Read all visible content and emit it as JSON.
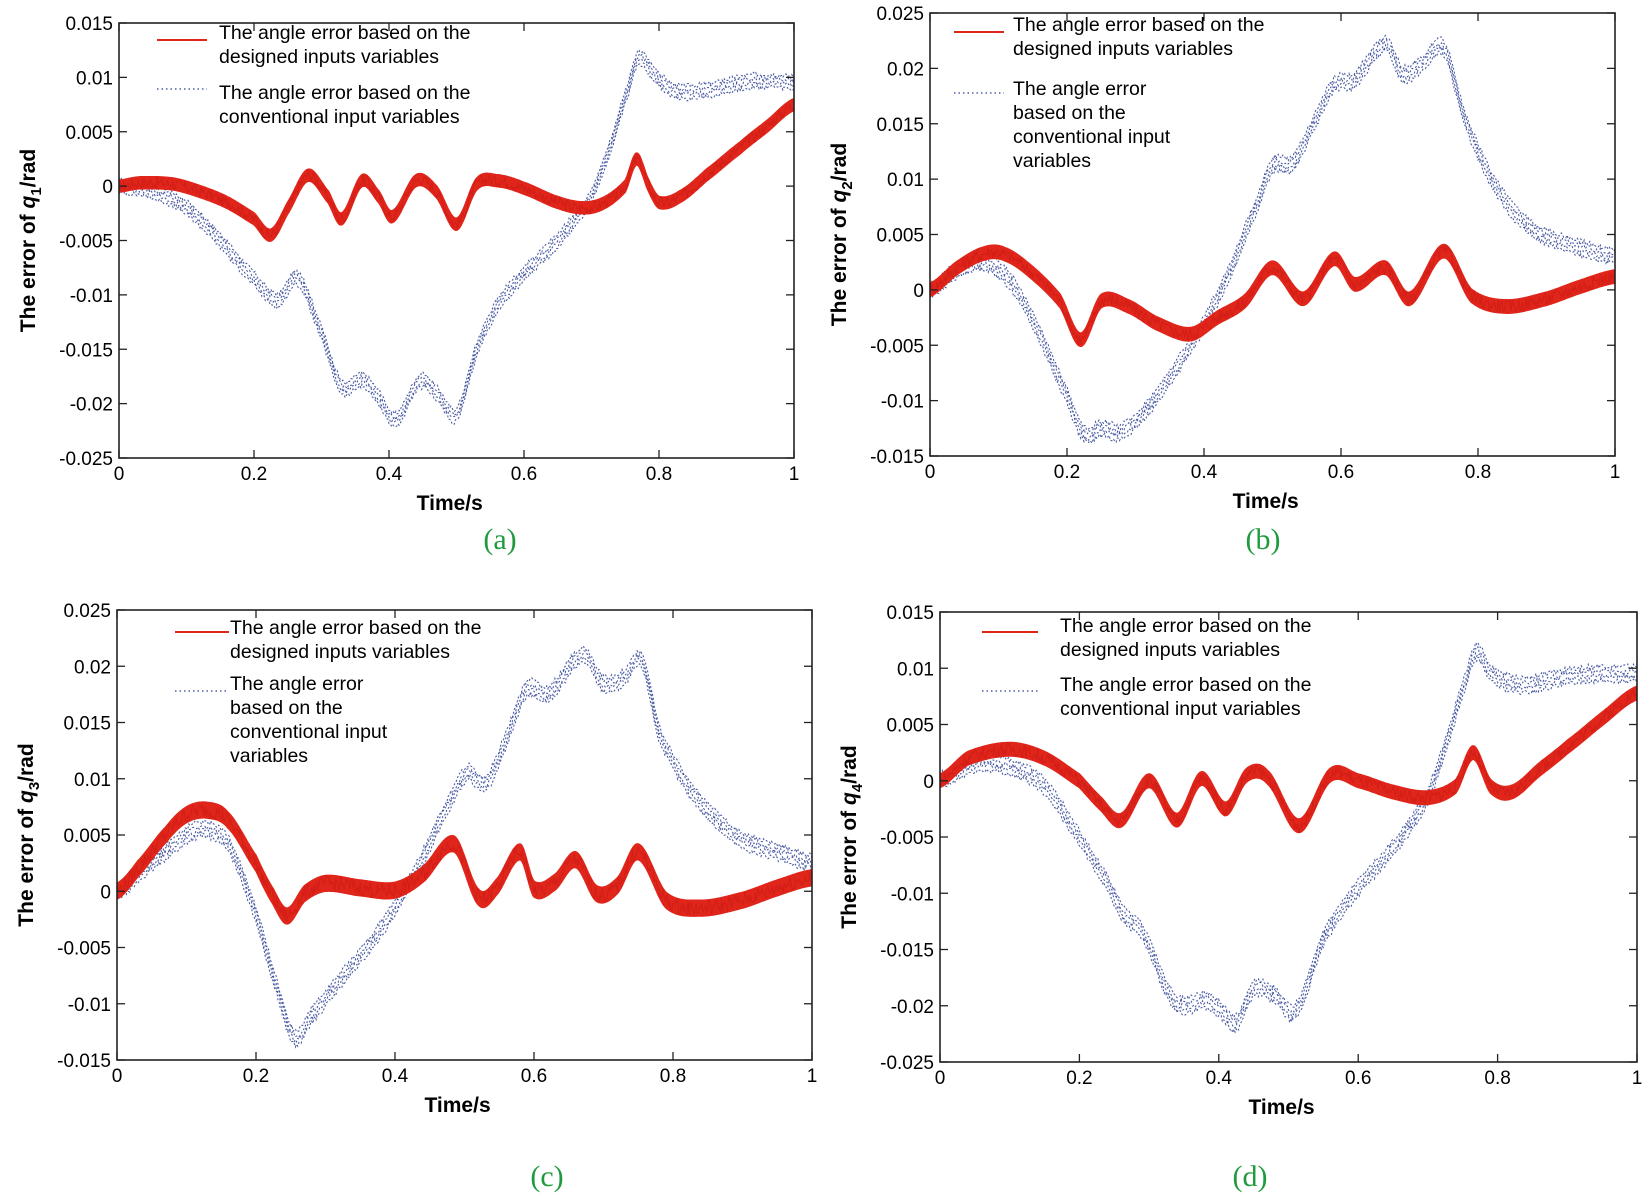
{
  "chart_data": [
    {
      "id": "a",
      "type": "line",
      "caption": "(a)",
      "xlabel": "Time/s",
      "ylabel_prefix": "The error of ",
      "ylabel_var": "q",
      "ylabel_sub": "1",
      "ylabel_suffix": "/rad",
      "xlim": [
        0,
        1
      ],
      "ylim": [
        -0.025,
        0.015
      ],
      "xticks": [
        0,
        0.2,
        0.4,
        0.6,
        0.8,
        1
      ],
      "xtick_labels": [
        "0",
        "0.2",
        "0.4",
        "0.6",
        "0.8",
        "1"
      ],
      "yticks": [
        -0.025,
        -0.02,
        -0.015,
        -0.01,
        -0.005,
        0,
        0.005,
        0.01,
        0.015
      ],
      "ytick_labels": [
        "-0.025",
        "-0.02",
        "-0.015",
        "-0.01",
        "-0.005",
        "0",
        "0.005",
        "0.01",
        "0.015"
      ],
      "legend_position": "top-left",
      "legend": [
        {
          "label_lines": [
            "The angle error based on the",
            "designed inputs variables"
          ],
          "style": "solid",
          "color": "#e0251b"
        },
        {
          "label_lines": [
            "The angle error based on the",
            "conventional input variables"
          ],
          "style": "dotted",
          "color": "#2b3f93"
        }
      ],
      "series": [
        {
          "name": "designed inputs variables",
          "color": "#e0251b",
          "band": 0.0011,
          "x": [
            0,
            0.03,
            0.08,
            0.12,
            0.16,
            0.2,
            0.225,
            0.25,
            0.28,
            0.31,
            0.33,
            0.36,
            0.385,
            0.405,
            0.44,
            0.47,
            0.5,
            0.53,
            0.56,
            0.6,
            0.65,
            0.69,
            0.72,
            0.75,
            0.767,
            0.785,
            0.8,
            0.83,
            0.87,
            0.92,
            0.96,
            1.0
          ],
          "y": [
            0,
            0.0003,
            0.0002,
            -0.0005,
            -0.0015,
            -0.003,
            -0.0045,
            -0.002,
            0.001,
            -0.001,
            -0.003,
            0.0005,
            -0.001,
            -0.0028,
            0.0005,
            -0.0005,
            -0.0035,
            0.0002,
            0.0005,
            -0.0002,
            -0.0015,
            -0.002,
            -0.0015,
            0.0,
            0.0025,
            0.0,
            -0.0015,
            -0.001,
            0.001,
            0.0035,
            0.0055,
            0.0075
          ]
        },
        {
          "name": "conventional input variables",
          "color": "#2b3f93",
          "band": 0.0012,
          "x": [
            0,
            0.05,
            0.1,
            0.15,
            0.2,
            0.235,
            0.265,
            0.3,
            0.33,
            0.36,
            0.385,
            0.41,
            0.445,
            0.47,
            0.5,
            0.53,
            0.56,
            0.6,
            0.65,
            0.7,
            0.73,
            0.755,
            0.77,
            0.79,
            0.82,
            0.87,
            0.92,
            0.96,
            1.0
          ],
          "y": [
            0,
            -0.0005,
            -0.002,
            -0.005,
            -0.0085,
            -0.0105,
            -0.0085,
            -0.0135,
            -0.0185,
            -0.0178,
            -0.0195,
            -0.0215,
            -0.018,
            -0.019,
            -0.021,
            -0.015,
            -0.011,
            -0.008,
            -0.005,
            -0.001,
            0.004,
            0.009,
            0.0118,
            0.0105,
            0.0088,
            0.0088,
            0.0095,
            0.0097,
            0.0095
          ]
        }
      ]
    },
    {
      "id": "b",
      "type": "line",
      "caption": "(b)",
      "xlabel": "Time/s",
      "ylabel_prefix": "The error of ",
      "ylabel_var": "q",
      "ylabel_sub": "2",
      "ylabel_suffix": "/rad",
      "xlim": [
        0,
        1
      ],
      "ylim": [
        -0.015,
        0.025
      ],
      "xticks": [
        0,
        0.2,
        0.4,
        0.6,
        0.8,
        1
      ],
      "xtick_labels": [
        "0",
        "0.2",
        "0.4",
        "0.6",
        "0.8",
        "1"
      ],
      "yticks": [
        -0.015,
        -0.01,
        -0.005,
        0,
        0.005,
        0.01,
        0.015,
        0.02,
        0.025
      ],
      "ytick_labels": [
        "-0.015",
        "-0.01",
        "-0.005",
        "0",
        "0.005",
        "0.01",
        "0.015",
        "0.02",
        "0.025"
      ],
      "legend_position": "top-left",
      "legend": [
        {
          "label_lines": [
            "The angle error based on the",
            "designed inputs variables"
          ],
          "style": "solid",
          "color": "#e0251b"
        },
        {
          "label_lines": [
            "The angle error",
            "based on the",
            "conventional input",
            "variables"
          ],
          "style": "dotted",
          "color": "#2b3f93"
        }
      ],
      "series": [
        {
          "name": "designed inputs variables",
          "color": "#e0251b",
          "band": 0.0012,
          "x": [
            0,
            0.04,
            0.08,
            0.11,
            0.15,
            0.19,
            0.22,
            0.25,
            0.29,
            0.33,
            0.38,
            0.42,
            0.46,
            0.5,
            0.545,
            0.59,
            0.62,
            0.665,
            0.7,
            0.75,
            0.79,
            0.84,
            0.9,
            0.95,
            1.0
          ],
          "y": [
            0,
            0.002,
            0.0033,
            0.0032,
            0.0015,
            -0.001,
            -0.0045,
            -0.001,
            -0.0015,
            -0.003,
            -0.004,
            -0.0025,
            -0.001,
            0.002,
            -0.0008,
            0.0028,
            0.0005,
            0.002,
            -0.0008,
            0.0035,
            -0.0005,
            -0.0015,
            -0.0008,
            0.0003,
            0.0012
          ]
        },
        {
          "name": "conventional input variables",
          "color": "#2b3f93",
          "band": 0.0013,
          "x": [
            0,
            0.04,
            0.08,
            0.12,
            0.16,
            0.2,
            0.225,
            0.25,
            0.28,
            0.32,
            0.36,
            0.4,
            0.44,
            0.48,
            0.5,
            0.53,
            0.56,
            0.59,
            0.62,
            0.665,
            0.69,
            0.72,
            0.75,
            0.78,
            0.82,
            0.86,
            0.9,
            0.95,
            1.0
          ],
          "y": [
            0,
            0.0018,
            0.0025,
            0.0005,
            -0.004,
            -0.0095,
            -0.013,
            -0.0125,
            -0.0128,
            -0.0105,
            -0.007,
            -0.003,
            0.002,
            0.008,
            0.0112,
            0.0115,
            0.015,
            0.0185,
            0.019,
            0.0222,
            0.0195,
            0.0205,
            0.0218,
            0.0155,
            0.01,
            0.0065,
            0.0048,
            0.0038,
            0.003
          ]
        }
      ]
    },
    {
      "id": "c",
      "type": "line",
      "caption": "(c)",
      "xlabel": "Time/s",
      "ylabel_prefix": "The error of ",
      "ylabel_var": "q",
      "ylabel_sub": "3",
      "ylabel_suffix": "/rad",
      "xlim": [
        0,
        1
      ],
      "ylim": [
        -0.015,
        0.025
      ],
      "xticks": [
        0,
        0.2,
        0.4,
        0.6,
        0.8,
        1
      ],
      "xtick_labels": [
        "0",
        "0.2",
        "0.4",
        "0.6",
        "0.8",
        "1"
      ],
      "yticks": [
        -0.015,
        -0.01,
        -0.005,
        0,
        0.005,
        0.01,
        0.015,
        0.02,
        0.025
      ],
      "ytick_labels": [
        "-0.015",
        "-0.01",
        "-0.005",
        "0",
        "0.005",
        "0.01",
        "0.015",
        "0.02",
        "0.025"
      ],
      "legend_position": "top-left",
      "legend": [
        {
          "label_lines": [
            "The angle error based on the",
            "designed inputs variables"
          ],
          "style": "solid",
          "color": "#e0251b"
        },
        {
          "label_lines": [
            "The angle error",
            "based on the",
            "conventional input",
            "variables"
          ],
          "style": "dotted",
          "color": "#2b3f93"
        }
      ],
      "series": [
        {
          "name": "designed inputs variables",
          "color": "#e0251b",
          "band": 0.0014,
          "x": [
            0,
            0.03,
            0.07,
            0.1,
            0.13,
            0.16,
            0.2,
            0.225,
            0.245,
            0.27,
            0.3,
            0.35,
            0.4,
            0.44,
            0.485,
            0.52,
            0.545,
            0.58,
            0.6,
            0.63,
            0.66,
            0.69,
            0.72,
            0.75,
            0.79,
            0.84,
            0.9,
            0.95,
            1.0
          ],
          "y": [
            0,
            0.002,
            0.005,
            0.0068,
            0.0072,
            0.0063,
            0.0025,
            -0.0005,
            -0.0022,
            -0.0002,
            0.0007,
            0.0003,
            0.0001,
            0.0015,
            0.0042,
            -0.0005,
            0.0003,
            0.0035,
            0.0002,
            0.0008,
            0.0028,
            -0.0002,
            0.0005,
            0.0035,
            -0.0008,
            -0.0015,
            -0.0008,
            0.0003,
            0.0012
          ]
        },
        {
          "name": "conventional input variables",
          "color": "#2b3f93",
          "band": 0.0013,
          "x": [
            0,
            0.04,
            0.08,
            0.12,
            0.16,
            0.2,
            0.23,
            0.255,
            0.28,
            0.32,
            0.36,
            0.4,
            0.44,
            0.48,
            0.505,
            0.53,
            0.56,
            0.59,
            0.62,
            0.67,
            0.7,
            0.73,
            0.755,
            0.78,
            0.82,
            0.86,
            0.9,
            0.95,
            1.0
          ],
          "y": [
            0,
            0.002,
            0.004,
            0.0055,
            0.0042,
            -0.002,
            -0.0085,
            -0.013,
            -0.011,
            -0.008,
            -0.005,
            -0.0015,
            0.003,
            0.008,
            0.0105,
            0.0095,
            0.0135,
            0.018,
            0.0175,
            0.021,
            0.0185,
            0.019,
            0.0205,
            0.014,
            0.0095,
            0.0065,
            0.0045,
            0.0035,
            0.0025
          ]
        }
      ]
    },
    {
      "id": "d",
      "type": "line",
      "caption": "(d)",
      "xlabel": "Time/s",
      "ylabel_prefix": "The error of ",
      "ylabel_var": "q",
      "ylabel_sub": "4",
      "ylabel_suffix": "/rad",
      "xlim": [
        0,
        1
      ],
      "ylim": [
        -0.025,
        0.015
      ],
      "xticks": [
        0,
        0.2,
        0.4,
        0.6,
        0.8,
        1
      ],
      "xtick_labels": [
        "0",
        "0.2",
        "0.4",
        "0.6",
        "0.8",
        "1"
      ],
      "yticks": [
        -0.025,
        -0.02,
        -0.015,
        -0.01,
        -0.005,
        0,
        0.005,
        0.01,
        0.015
      ],
      "ytick_labels": [
        "-0.025",
        "-0.02",
        "-0.015",
        "-0.01",
        "-0.005",
        "0",
        "0.005",
        "0.01",
        "0.015"
      ],
      "legend_position": "top-left",
      "legend": [
        {
          "label_lines": [
            "The angle error based on the",
            "designed inputs variables"
          ],
          "style": "solid",
          "color": "#e0251b"
        },
        {
          "label_lines": [
            "The angle error based on the",
            "conventional input variables"
          ],
          "style": "dotted",
          "color": "#2b3f93"
        }
      ],
      "series": [
        {
          "name": "designed inputs variables",
          "color": "#e0251b",
          "band": 0.0012,
          "x": [
            0,
            0.04,
            0.1,
            0.15,
            0.2,
            0.23,
            0.26,
            0.3,
            0.34,
            0.375,
            0.41,
            0.44,
            0.47,
            0.515,
            0.56,
            0.6,
            0.65,
            0.7,
            0.74,
            0.765,
            0.79,
            0.82,
            0.86,
            0.9,
            0.95,
            1.0
          ],
          "y": [
            0,
            0.002,
            0.0028,
            0.002,
            0.0,
            -0.002,
            -0.0035,
            0.0,
            -0.0035,
            0.0002,
            -0.0025,
            0.0005,
            0.0003,
            -0.004,
            0.0005,
            0.0,
            -0.001,
            -0.0015,
            -0.0005,
            0.0025,
            -0.0005,
            -0.001,
            0.001,
            0.003,
            0.0055,
            0.0078
          ]
        },
        {
          "name": "conventional input variables",
          "color": "#2b3f93",
          "band": 0.0013,
          "x": [
            0,
            0.05,
            0.1,
            0.15,
            0.2,
            0.24,
            0.265,
            0.29,
            0.33,
            0.35,
            0.38,
            0.405,
            0.425,
            0.45,
            0.48,
            0.51,
            0.55,
            0.6,
            0.65,
            0.7,
            0.73,
            0.755,
            0.77,
            0.79,
            0.83,
            0.88,
            0.93,
            0.97,
            1.0
          ],
          "y": [
            0,
            0.0015,
            0.0012,
            -0.0005,
            -0.005,
            -0.009,
            -0.012,
            -0.0135,
            -0.019,
            -0.02,
            -0.0195,
            -0.0205,
            -0.0215,
            -0.0185,
            -0.019,
            -0.0205,
            -0.014,
            -0.0095,
            -0.006,
            -0.0015,
            0.004,
            0.009,
            0.0115,
            0.0095,
            0.0085,
            0.009,
            0.0095,
            0.0095,
            0.0095
          ]
        }
      ]
    }
  ]
}
